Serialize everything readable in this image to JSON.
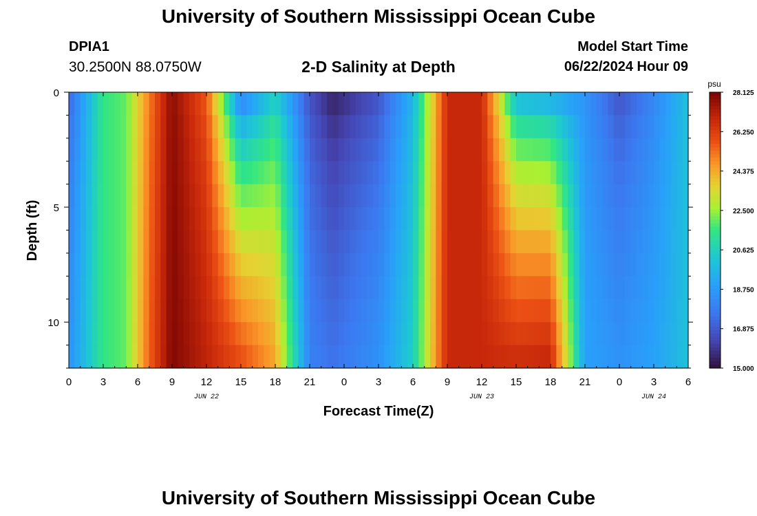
{
  "header": {
    "title": "University of Southern Mississippi Ocean Cube",
    "station_id": "DPIA1",
    "station_coords": "30.2500N  88.0750W",
    "subtitle": "2-D Salinity at Depth",
    "model_start_label": "Model Start Time",
    "model_start_value": "06/22/2024 Hour 09"
  },
  "footer": {
    "title": "University of Southern Mississippi Ocean Cube"
  },
  "colors": {
    "background": "#ffffff",
    "axis": "#000000"
  },
  "chart_data": {
    "type": "heatmap",
    "title": "2-D Salinity at Depth",
    "xlabel": "Forecast Time(Z)",
    "ylabel": "Depth (ft)",
    "x_range_hours": [
      0,
      54
    ],
    "y_range_ft": [
      0,
      12
    ],
    "x_tick_labels": [
      "0",
      "3",
      "6",
      "9",
      "12",
      "15",
      "18",
      "21",
      "0",
      "3",
      "6",
      "9",
      "12",
      "15",
      "18",
      "21",
      "0",
      "3",
      "6"
    ],
    "x_tick_hours": [
      0,
      3,
      6,
      9,
      12,
      15,
      18,
      21,
      24,
      27,
      30,
      33,
      36,
      39,
      42,
      45,
      48,
      51,
      54
    ],
    "y_tick_labels": [
      "0",
      "5",
      "10"
    ],
    "y_tick_values": [
      0,
      5,
      10
    ],
    "date_labels": [
      {
        "text": "JUN 22",
        "hour": 12
      },
      {
        "text": "JUN 23",
        "hour": 36
      },
      {
        "text": "JUN 24",
        "hour": 51
      }
    ],
    "colorbar": {
      "unit": "psu",
      "min": 15.0,
      "max": 28.125,
      "tick_labels": [
        "28.125",
        "26.250",
        "24.375",
        "22.500",
        "20.625",
        "18.750",
        "16.875",
        "15.000"
      ],
      "tick_values": [
        28.125,
        26.25,
        24.375,
        22.5,
        20.625,
        18.75,
        16.875,
        15.0
      ]
    },
    "approx_profiles_psu": [
      {
        "hour": 0,
        "surface": 17.0,
        "bottom": 18.5
      },
      {
        "hour": 3,
        "surface": 21.5,
        "bottom": 21.5
      },
      {
        "hour": 5,
        "surface": 22.0,
        "bottom": 22.0
      },
      {
        "hour": 7,
        "surface": 25.0,
        "bottom": 25.5
      },
      {
        "hour": 9,
        "surface": 27.8,
        "bottom": 28.0
      },
      {
        "hour": 12,
        "surface": 25.5,
        "bottom": 27.0
      },
      {
        "hour": 15,
        "surface": 17.0,
        "bottom": 26.0
      },
      {
        "hour": 18,
        "surface": 20.0,
        "bottom": 24.5
      },
      {
        "hour": 21,
        "surface": 16.5,
        "bottom": 18.0
      },
      {
        "hour": 23,
        "surface": 15.2,
        "bottom": 17.5
      },
      {
        "hour": 27,
        "surface": 16.5,
        "bottom": 18.5
      },
      {
        "hour": 30,
        "surface": 19.5,
        "bottom": 20.5
      },
      {
        "hour": 33,
        "surface": 26.8,
        "bottom": 26.8
      },
      {
        "hour": 36,
        "surface": 26.8,
        "bottom": 26.8
      },
      {
        "hour": 39,
        "surface": 19.0,
        "bottom": 26.8
      },
      {
        "hour": 42,
        "surface": 18.5,
        "bottom": 27.0
      },
      {
        "hour": 45,
        "surface": 18.5,
        "bottom": 19.0
      },
      {
        "hour": 48,
        "surface": 16.5,
        "bottom": 18.5
      },
      {
        "hour": 51,
        "surface": 18.0,
        "bottom": 19.0
      },
      {
        "hour": 54,
        "surface": 20.0,
        "bottom": 20.0
      }
    ]
  }
}
